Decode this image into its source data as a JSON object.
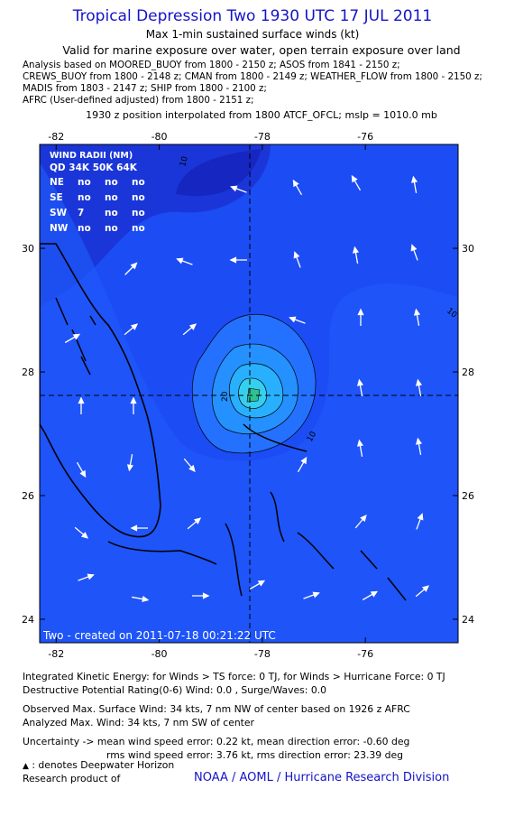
{
  "header": {
    "title": "Tropical Depression Two 1930 UTC 17 JUL 2011",
    "subtitle": "Max 1-min sustained surface winds (kt)",
    "valid": "Valid for marine exposure over water, open terrain exposure over land",
    "sources": [
      "Analysis based on MOORED_BUOY from 1800 - 2150 z; ASOS from 1841 - 2150 z;",
      "CREWS_BUOY from 1800 - 2148 z; CMAN from 1800 - 2149 z; WEATHER_FLOW from 1800 - 2150 z;",
      "MADIS from 1803 - 2147 z; SHIP from 1800 - 2100 z;",
      "AFRC (User-defined adjusted) from 1800 - 2151 z;"
    ],
    "position_note": "1930 z position interpolated from 1800 ATCF_OFCL; mslp = 1010.0 mb"
  },
  "map": {
    "xlim": [
      -82.32,
      -74.2
    ],
    "ylim": [
      23.62,
      31.68
    ],
    "xticks": [
      -82,
      -80,
      -78,
      -76
    ],
    "yticks": [
      30,
      28,
      26,
      24
    ],
    "wind_radii": {
      "title": "WIND RADII (NM)",
      "header": "QD 34K 50K 64K",
      "rows": [
        [
          "NE",
          "no",
          "no",
          "no"
        ],
        [
          "SE",
          "no",
          "no",
          "no"
        ],
        [
          "SW",
          "7",
          "no",
          "no"
        ],
        [
          "NW",
          "no",
          "no",
          "no"
        ]
      ]
    },
    "contour_labels": [
      "10",
      "10",
      "20",
      "10"
    ],
    "created": "Two - created on 2011-07-18 00:21:22 UTC"
  },
  "footer": {
    "lines": [
      "Integrated Kinetic Energy:  for Winds > TS force: 0 TJ,  for Winds > Hurricane Force: 0 TJ",
      "Destructive Potential Rating(0-6)   Wind: 0.0 , Surge/Waves: 0.0",
      "Observed Max. Surface Wind: 34 kts, 7 nm NW of center based on 1926 z AFRC",
      "Analyzed Max. Wind: 34 kts, 7 nm SW of center",
      "Uncertainty -> mean wind speed error: 0.22 kt,   mean direction error:  -0.60 deg",
      "rms wind speed error: 3.76 kt,   rms direction error: 23.39 deg"
    ],
    "legend": ": denotes Deepwater Horizon",
    "research": "Research product of",
    "org": "NOAA / AOML / Hurricane Research Division"
  }
}
